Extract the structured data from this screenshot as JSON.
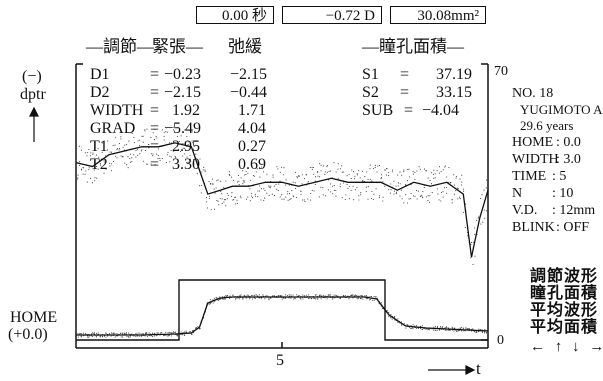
{
  "header_boxes": {
    "time": "0.00 秒",
    "diopter": "−0.72 D",
    "area": "30.08mm²"
  },
  "column_headers": {
    "accommodation": "—調節—",
    "tension": "緊張—",
    "relaxation": "弛緩",
    "pupil_area": "—瞳孔面積—"
  },
  "y_axis": {
    "top_label_1": "(−)",
    "top_label_2": "dptr",
    "home_label_1": "HOME",
    "home_label_2": "(+0.0)",
    "right_top": "70",
    "right_bottom": "0"
  },
  "x_axis": {
    "tick_label": "5",
    "label": "t"
  },
  "stats": {
    "rows": [
      {
        "name": "D1",
        "eq": "=",
        "tension": "−0.23",
        "relaxation": "−2.15"
      },
      {
        "name": "D2",
        "eq": "=",
        "tension": "−2.15",
        "relaxation": "−0.44"
      },
      {
        "name": "WIDTH",
        "eq": "=",
        "tension": "1.92",
        "relaxation": "1.71"
      },
      {
        "name": "GRAD",
        "eq": "=",
        "tension": "−5.49",
        "relaxation": "4.04"
      },
      {
        "name": "T1",
        "eq": "=",
        "tension": "2.95",
        "relaxation": "0.27"
      },
      {
        "name": "T2",
        "eq": "=",
        "tension": "3.30",
        "relaxation": "0.69"
      }
    ],
    "pupil": [
      {
        "name": "S1",
        "eq": "=",
        "value": "37.19"
      },
      {
        "name": "S2",
        "eq": "=",
        "value": "33.15"
      },
      {
        "name": "SUB",
        "eq": "=",
        "value": "−4.04"
      }
    ]
  },
  "subject_info": {
    "number": "NO. 18",
    "name": "YUGIMOTO A",
    "age": "29.6 years",
    "rows": [
      {
        "key": "HOME",
        "value": ": 0.0"
      },
      {
        "key": "WIDTH",
        "value": ": 3.0"
      },
      {
        "key": "TIME",
        "value": ": 5"
      },
      {
        "key": "N",
        "value": ": 10"
      },
      {
        "key": "V.D.",
        "value": ": 12mm"
      },
      {
        "key": "BLINK",
        "value": ": OFF"
      }
    ]
  },
  "legend": {
    "items": [
      "調節波形",
      "瞳孔面積",
      "平均波形",
      "平均面積"
    ],
    "arrows": "← ↑ ↓ →"
  },
  "chart_data": {
    "type": "line",
    "xlim": [
      0,
      10
    ],
    "stimulus_step": {
      "start": 2.5,
      "end": 7.5
    },
    "x_ticks": [
      5
    ],
    "series": [
      {
        "role": "pupil area average",
        "x": [
          0,
          0.4,
          0.8,
          1.2,
          1.6,
          2.0,
          2.4,
          2.8,
          3.0,
          3.2,
          3.5,
          3.8,
          4.2,
          4.6,
          5.0,
          5.4,
          5.8,
          6.2,
          6.6,
          7.0,
          7.4,
          7.8,
          8.2,
          8.6,
          9.0,
          9.4,
          9.6,
          9.8,
          10
        ],
        "y": [
          45,
          44,
          47,
          48,
          49,
          49,
          50,
          49,
          43,
          37,
          38,
          39,
          39,
          40,
          40,
          39,
          40,
          41,
          40,
          40,
          40,
          38,
          40,
          39,
          40,
          37,
          21,
          31,
          38
        ]
      },
      {
        "role": "accommodation average",
        "x": [
          0,
          0.8,
          1.6,
          2.4,
          2.8,
          3.0,
          3.2,
          3.5,
          3.8,
          4.5,
          5.5,
          6.5,
          7.0,
          7.3,
          7.6,
          8.0,
          8.5,
          9.0,
          9.5,
          10
        ],
        "y": [
          -0.1,
          -0.1,
          -0.1,
          -0.15,
          -0.2,
          -0.5,
          -1.7,
          -1.95,
          -2.0,
          -2.0,
          -2.0,
          -2.0,
          -2.0,
          -1.9,
          -1.1,
          -0.55,
          -0.45,
          -0.4,
          -0.35,
          -0.3
        ]
      }
    ]
  }
}
